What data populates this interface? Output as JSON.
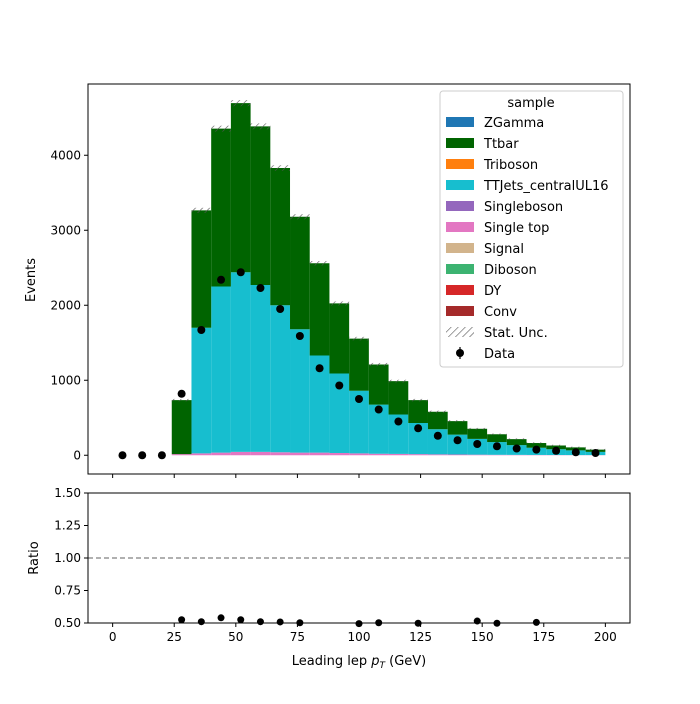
{
  "chart_data": [
    {
      "type": "bar",
      "stacked": true,
      "ylabel": "Events",
      "xlabel": "",
      "xlim": [
        -10,
        210
      ],
      "ylim": [
        -250,
        4950
      ],
      "xticks": [
        0,
        25,
        50,
        75,
        100,
        125,
        150,
        175,
        200
      ],
      "yticks": [
        0,
        1000,
        2000,
        3000,
        4000
      ],
      "bin_edges": [
        24,
        32,
        40,
        48,
        56,
        64,
        72,
        80,
        88,
        96,
        104,
        112,
        120,
        128,
        136,
        144,
        152,
        160,
        168,
        176,
        184,
        192,
        200
      ],
      "series": [
        {
          "name": "Single top",
          "color": "#e377c2",
          "values": [
            15,
            25,
            35,
            45,
            45,
            40,
            35,
            35,
            30,
            25,
            20,
            18,
            15,
            12,
            10,
            8,
            6,
            5,
            4,
            3,
            2,
            2
          ]
        },
        {
          "name": "TTJets_centralUL16",
          "color": "#17becf",
          "values": [
            0,
            1675,
            2215,
            2395,
            2225,
            1960,
            1645,
            1295,
            1060,
            835,
            655,
            525,
            415,
            335,
            265,
            210,
            170,
            130,
            96,
            77,
            63,
            43
          ]
        },
        {
          "name": "Ttbar",
          "color": "#006400",
          "values": [
            720,
            1565,
            2105,
            2255,
            2115,
            1830,
            1500,
            1230,
            935,
            695,
            535,
            445,
            305,
            233,
            180,
            135,
            104,
            80,
            63,
            50,
            40,
            30
          ]
        }
      ],
      "stat_unc_label": "Stat. Unc.",
      "data_points": {
        "name": "Data",
        "x": [
          4,
          12,
          20,
          28,
          36,
          44,
          52,
          60,
          68,
          76,
          84,
          92,
          100,
          108,
          116,
          124,
          132,
          140,
          148,
          156,
          164,
          172,
          180,
          188,
          196
        ],
        "y": [
          0,
          0,
          0,
          820,
          1670,
          2340,
          2440,
          2230,
          1950,
          1590,
          1160,
          930,
          750,
          610,
          450,
          360,
          260,
          200,
          150,
          120,
          90,
          75,
          60,
          40,
          30
        ]
      },
      "legend": {
        "title": "sample",
        "position": "top-right",
        "entries": [
          {
            "label": "ZGamma",
            "color": "#1f77b4",
            "kind": "patch"
          },
          {
            "label": "Ttbar",
            "color": "#006400",
            "kind": "patch"
          },
          {
            "label": "Triboson",
            "color": "#ff7f0e",
            "kind": "patch"
          },
          {
            "label": "TTJets_centralUL16",
            "color": "#17becf",
            "kind": "patch"
          },
          {
            "label": "Singleboson",
            "color": "#9467bd",
            "kind": "patch"
          },
          {
            "label": "Single top",
            "color": "#e377c2",
            "kind": "patch"
          },
          {
            "label": "Signal",
            "color": "#d2b48c",
            "kind": "patch"
          },
          {
            "label": "Diboson",
            "color": "#3cb371",
            "kind": "patch"
          },
          {
            "label": "DY",
            "color": "#d62728",
            "kind": "patch"
          },
          {
            "label": "Conv",
            "color": "#a52a2a",
            "kind": "patch"
          },
          {
            "label": "Stat. Unc.",
            "color": "#888888",
            "kind": "hatch"
          },
          {
            "label": "Data",
            "color": "#000000",
            "kind": "errorpoint"
          }
        ]
      }
    },
    {
      "type": "scatter",
      "ylabel": "Ratio",
      "xlabel": "Leading lep ",
      "xlabel_var": "p",
      "xlabel_sub": "T",
      "xlabel_unit": " (GeV)",
      "xlim": [
        -10,
        210
      ],
      "ylim": [
        0.5,
        1.5
      ],
      "xticks": [
        0,
        25,
        50,
        75,
        100,
        125,
        150,
        175,
        200
      ],
      "yticks": [
        0.5,
        0.75,
        1.0,
        1.25,
        1.5
      ],
      "ytick_labels": [
        "0.50",
        "0.75",
        "1.00",
        "1.25",
        "1.50"
      ],
      "reference_line": 1.0,
      "points": {
        "x": [
          28,
          36,
          44,
          52,
          60,
          68,
          76,
          100,
          108,
          124,
          148,
          156,
          172
        ],
        "y": [
          0.525,
          0.51,
          0.54,
          0.525,
          0.51,
          0.508,
          0.502,
          0.495,
          0.502,
          0.498,
          0.515,
          0.498,
          0.505
        ]
      }
    }
  ]
}
